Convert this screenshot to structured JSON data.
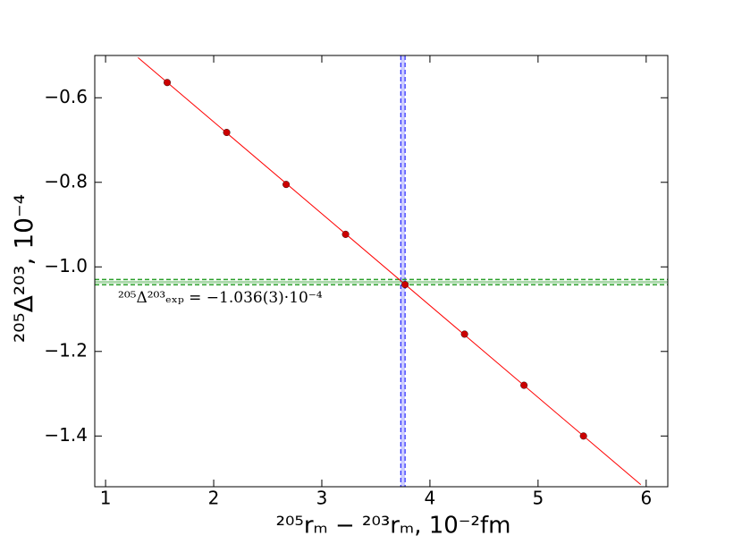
{
  "chart_data": {
    "type": "scatter",
    "xlabel": "²⁰⁵rₘ − ²⁰³rₘ, 10⁻²fm",
    "ylabel": "²⁰⁵Δ²⁰³, 10⁻⁴",
    "annotation": "²⁰⁵Δ²⁰³ₑₓₚ = −1.036(3)·10⁻⁴",
    "xlim": [
      0.9,
      6.2
    ],
    "ylim": [
      -1.52,
      -0.5
    ],
    "xticks": [
      1,
      2,
      3,
      4,
      5,
      6
    ],
    "yticks": [
      {
        "value": -0.6,
        "label": "−0.6"
      },
      {
        "value": -0.8,
        "label": "−0.8"
      },
      {
        "value": -1.0,
        "label": "−1.0"
      },
      {
        "value": -1.2,
        "label": "−1.2"
      },
      {
        "value": -1.4,
        "label": "−1.4"
      }
    ],
    "series": [
      {
        "color": "#cc0000",
        "x": [
          1.57,
          2.12,
          2.67,
          3.22,
          3.77,
          4.32,
          4.87,
          5.42
        ],
        "values": [
          -0.564,
          -0.682,
          -0.805,
          -0.923,
          -1.042,
          -1.159,
          -1.28,
          -1.4
        ]
      },
      {
        "color": "#ff0000",
        "x": [
          1.3,
          5.95
        ],
        "values": [
          -0.505,
          -1.515
        ]
      }
    ],
    "hline": {
      "value": -1.036,
      "error": 0.003,
      "color": "#2ca02c"
    },
    "vline": {
      "value": 3.75,
      "error": 0.02,
      "color": "#0000ff"
    }
  }
}
